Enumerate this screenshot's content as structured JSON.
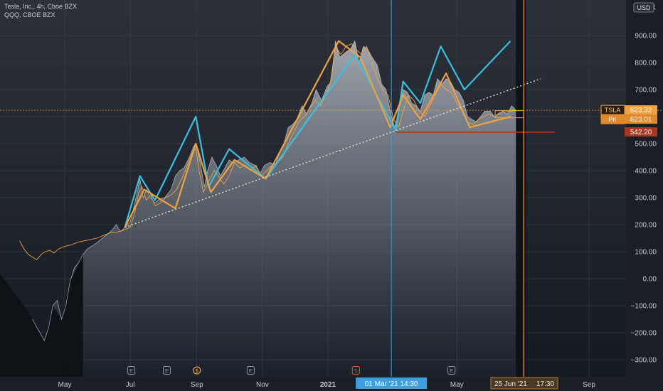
{
  "app": {
    "symbol_line": "Tesla, Inc., 4h, Cboe BZX",
    "compare_line": "QQQ, CBOE BZX",
    "currency": "USD"
  },
  "crosshair": {
    "x_label": "01 Mar '21  14:30",
    "replay_label": "25 Jun '21",
    "replay_time": "17:30"
  },
  "price_tags": [
    {
      "id": "tsla",
      "name": "TSLA",
      "value": "623.32",
      "color": "#f0a03c"
    },
    {
      "id": "pri",
      "name": "Pri",
      "value": "623.01",
      "color": "#e08a2c"
    },
    {
      "id": "level",
      "name": "",
      "value": "542.20",
      "color": "#a8381e"
    }
  ],
  "event_markers": [
    "E",
    "E",
    "$",
    "E",
    "S",
    "E"
  ],
  "colors": {
    "tsla_fill": "#b9bec8",
    "qqq_line": "#f0a03c",
    "wave_blue": "#39bfe0",
    "wave_orange": "#f0a03c",
    "trend_dotted": "#e9e4c9",
    "support_line": "#a8381e",
    "crosshair_blue": "#3d9ee0",
    "crosshair_orange": "#d88a3a"
  },
  "chart_data": {
    "type": "area",
    "title": "Tesla, Inc., 4h, Cboe BZX",
    "xlabel": "",
    "ylabel": "",
    "currency": "USD",
    "x_ticks": [
      "May",
      "Jul",
      "Sep",
      "Nov",
      "2021",
      "Mar",
      "May",
      "Jul",
      "Sep"
    ],
    "y_ticks": [
      "900.00",
      "800.00",
      "700.00",
      "600.00",
      "500.00",
      "400.00",
      "300.00",
      "200.00",
      "100.00",
      "0.00",
      "−100.00",
      "−200.00",
      "−300.00"
    ],
    "y_top_partial": "1",
    "ylim": [
      -340,
      1020
    ],
    "grid": true,
    "series": [
      {
        "name": "TSLA",
        "type": "area",
        "points": [
          [
            "2020-04-01",
            -150
          ],
          [
            "2020-04-05",
            -180
          ],
          [
            "2020-04-08",
            -200
          ],
          [
            "2020-04-12",
            -230
          ],
          [
            "2020-04-16",
            -180
          ],
          [
            "2020-04-20",
            -100
          ],
          [
            "2020-04-24",
            -80
          ],
          [
            "2020-04-28",
            -150
          ],
          [
            "2020-05-02",
            -100
          ],
          [
            "2020-05-06",
            -10
          ],
          [
            "2020-05-10",
            40
          ],
          [
            "2020-05-14",
            60
          ],
          [
            "2020-05-18",
            90
          ],
          [
            "2020-05-22",
            110
          ],
          [
            "2020-05-26",
            120
          ],
          [
            "2020-05-30",
            130
          ],
          [
            "2020-06-05",
            150
          ],
          [
            "2020-06-10",
            165
          ],
          [
            "2020-06-14",
            180
          ],
          [
            "2020-06-18",
            200
          ],
          [
            "2020-06-22",
            175
          ],
          [
            "2020-06-26",
            190
          ],
          [
            "2020-07-01",
            210
          ],
          [
            "2020-07-04",
            260
          ],
          [
            "2020-07-08",
            330
          ],
          [
            "2020-07-10",
            370
          ],
          [
            "2020-07-13",
            300
          ],
          [
            "2020-07-16",
            330
          ],
          [
            "2020-07-20",
            300
          ],
          [
            "2020-07-24",
            280
          ],
          [
            "2020-07-28",
            295
          ],
          [
            "2020-08-02",
            300
          ],
          [
            "2020-08-08",
            330
          ],
          [
            "2020-08-12",
            380
          ],
          [
            "2020-08-16",
            400
          ],
          [
            "2020-08-20",
            410
          ],
          [
            "2020-08-25",
            450
          ],
          [
            "2020-08-29",
            490
          ],
          [
            "2020-08-31",
            500
          ],
          [
            "2020-09-04",
            430
          ],
          [
            "2020-09-08",
            340
          ],
          [
            "2020-09-11",
            400
          ],
          [
            "2020-09-15",
            450
          ],
          [
            "2020-09-19",
            420
          ],
          [
            "2020-09-23",
            380
          ],
          [
            "2020-09-27",
            410
          ],
          [
            "2020-10-01",
            440
          ],
          [
            "2020-10-05",
            430
          ],
          [
            "2020-10-10",
            440
          ],
          [
            "2020-10-15",
            450
          ],
          [
            "2020-10-20",
            430
          ],
          [
            "2020-10-25",
            420
          ],
          [
            "2020-10-30",
            390
          ],
          [
            "2020-11-03",
            420
          ],
          [
            "2020-11-08",
            430
          ],
          [
            "2020-11-13",
            420
          ],
          [
            "2020-11-17",
            470
          ],
          [
            "2020-11-21",
            500
          ],
          [
            "2020-11-25",
            560
          ],
          [
            "2020-11-29",
            570
          ],
          [
            "2020-12-03",
            590
          ],
          [
            "2020-12-08",
            640
          ],
          [
            "2020-12-12",
            610
          ],
          [
            "2020-12-17",
            650
          ],
          [
            "2020-12-21",
            700
          ],
          [
            "2020-12-26",
            660
          ],
          [
            "2020-12-31",
            710
          ],
          [
            "2021-01-04",
            730
          ],
          [
            "2021-01-08",
            880
          ],
          [
            "2021-01-12",
            820
          ],
          [
            "2021-01-18",
            840
          ],
          [
            "2021-01-22",
            850
          ],
          [
            "2021-01-26",
            880
          ],
          [
            "2021-01-30",
            800
          ],
          [
            "2021-02-03",
            860
          ],
          [
            "2021-02-07",
            850
          ],
          [
            "2021-02-11",
            820
          ],
          [
            "2021-02-16",
            790
          ],
          [
            "2021-02-20",
            720
          ],
          [
            "2021-02-24",
            700
          ],
          [
            "2021-02-28",
            620
          ],
          [
            "2021-03-04",
            560
          ],
          [
            "2021-03-08",
            620
          ],
          [
            "2021-03-12",
            700
          ],
          [
            "2021-03-16",
            690
          ],
          [
            "2021-03-20",
            650
          ],
          [
            "2021-03-24",
            640
          ],
          [
            "2021-03-28",
            620
          ],
          [
            "2021-04-01",
            680
          ],
          [
            "2021-04-05",
            690
          ],
          [
            "2021-04-09",
            680
          ],
          [
            "2021-04-13",
            740
          ],
          [
            "2021-04-17",
            720
          ],
          [
            "2021-04-21",
            740
          ],
          [
            "2021-04-25",
            730
          ],
          [
            "2021-04-29",
            700
          ],
          [
            "2021-05-03",
            690
          ],
          [
            "2021-05-07",
            660
          ],
          [
            "2021-05-11",
            600
          ],
          [
            "2021-05-15",
            590
          ],
          [
            "2021-05-19",
            580
          ],
          [
            "2021-05-23",
            600
          ],
          [
            "2021-05-27",
            620
          ],
          [
            "2021-06-01",
            620
          ],
          [
            "2021-06-05",
            600
          ],
          [
            "2021-06-09",
            610
          ],
          [
            "2021-06-13",
            620
          ],
          [
            "2021-06-17",
            610
          ],
          [
            "2021-06-21",
            640
          ],
          [
            "2021-06-25",
            623.32
          ]
        ]
      },
      {
        "name": "QQQ",
        "type": "line",
        "points": [
          [
            "2020-03-20",
            140
          ],
          [
            "2020-03-24",
            110
          ],
          [
            "2020-03-28",
            90
          ],
          [
            "2020-04-01",
            80
          ],
          [
            "2020-04-05",
            70
          ],
          [
            "2020-04-09",
            90
          ],
          [
            "2020-04-13",
            100
          ],
          [
            "2020-04-17",
            105
          ],
          [
            "2020-04-21",
            95
          ],
          [
            "2020-04-25",
            110
          ],
          [
            "2020-05-01",
            120
          ],
          [
            "2020-05-07",
            125
          ],
          [
            "2020-05-13",
            135
          ],
          [
            "2020-05-19",
            140
          ],
          [
            "2020-05-25",
            145
          ],
          [
            "2020-05-31",
            150
          ],
          [
            "2020-06-06",
            160
          ],
          [
            "2020-06-12",
            170
          ],
          [
            "2020-06-18",
            172
          ],
          [
            "2020-06-24",
            178
          ],
          [
            "2020-07-01",
            190
          ],
          [
            "2020-07-05",
            240
          ],
          [
            "2020-07-09",
            320
          ],
          [
            "2020-07-12",
            340
          ],
          [
            "2020-07-16",
            290
          ],
          [
            "2020-07-20",
            310
          ],
          [
            "2020-07-24",
            270
          ],
          [
            "2020-07-29",
            280
          ],
          [
            "2020-08-03",
            300
          ],
          [
            "2020-08-08",
            310
          ],
          [
            "2020-08-13",
            330
          ],
          [
            "2020-08-18",
            370
          ],
          [
            "2020-08-23",
            420
          ],
          [
            "2020-08-28",
            470
          ],
          [
            "2020-08-31",
            480
          ],
          [
            "2020-09-03",
            400
          ],
          [
            "2020-09-07",
            320
          ],
          [
            "2020-09-12",
            360
          ],
          [
            "2020-09-17",
            400
          ],
          [
            "2020-09-21",
            380
          ],
          [
            "2020-09-26",
            350
          ],
          [
            "2020-10-01",
            380
          ],
          [
            "2020-10-06",
            430
          ],
          [
            "2020-10-11",
            410
          ],
          [
            "2020-10-16",
            420
          ],
          [
            "2020-10-21",
            400
          ],
          [
            "2020-10-26",
            420
          ],
          [
            "2020-10-31",
            380
          ],
          [
            "2020-11-05",
            400
          ],
          [
            "2020-11-10",
            420
          ],
          [
            "2020-11-15",
            430
          ],
          [
            "2020-11-20",
            450
          ],
          [
            "2020-11-25",
            500
          ],
          [
            "2020-11-30",
            540
          ],
          [
            "2020-12-05",
            580
          ],
          [
            "2020-12-10",
            600
          ],
          [
            "2020-12-15",
            630
          ],
          [
            "2020-12-20",
            660
          ],
          [
            "2020-12-25",
            640
          ],
          [
            "2020-12-30",
            680
          ],
          [
            "2021-01-03",
            720
          ],
          [
            "2021-01-08",
            860
          ],
          [
            "2021-01-13",
            830
          ],
          [
            "2021-01-18",
            860
          ],
          [
            "2021-01-23",
            870
          ],
          [
            "2021-01-27",
            850
          ],
          [
            "2021-02-01",
            830
          ],
          [
            "2021-02-06",
            860
          ],
          [
            "2021-02-11",
            800
          ],
          [
            "2021-02-16",
            740
          ],
          [
            "2021-02-21",
            700
          ],
          [
            "2021-02-26",
            680
          ],
          [
            "2021-03-03",
            590
          ],
          [
            "2021-03-08",
            560
          ],
          [
            "2021-03-12",
            620
          ],
          [
            "2021-03-17",
            680
          ],
          [
            "2021-03-22",
            660
          ],
          [
            "2021-03-27",
            620
          ],
          [
            "2021-04-01",
            600
          ],
          [
            "2021-04-06",
            640
          ],
          [
            "2021-04-11",
            680
          ],
          [
            "2021-04-16",
            720
          ],
          [
            "2021-04-21",
            700
          ],
          [
            "2021-04-26",
            690
          ],
          [
            "2021-05-01",
            650
          ],
          [
            "2021-05-06",
            620
          ],
          [
            "2021-05-11",
            580
          ],
          [
            "2021-05-16",
            570
          ],
          [
            "2021-05-21",
            590
          ],
          [
            "2021-05-26",
            600
          ],
          [
            "2021-05-31",
            610
          ],
          [
            "2021-06-05",
            600
          ],
          [
            "2021-06-10",
            615
          ],
          [
            "2021-06-15",
            618
          ],
          [
            "2021-06-20",
            620
          ],
          [
            "2021-06-25",
            623.01
          ]
        ]
      },
      {
        "name": "",
        "type": "wave",
        "color": "wave_blue",
        "points": [
          [
            "2020-06-26",
            190
          ],
          [
            "2020-07-10",
            380
          ],
          [
            "2020-07-24",
            290
          ],
          [
            "2020-08-31",
            600
          ],
          [
            "2020-09-12",
            340
          ],
          [
            "2020-10-01",
            480
          ],
          [
            "2020-11-04",
            370
          ],
          [
            "2021-01-26",
            830
          ],
          [
            "2021-03-05",
            550
          ],
          [
            "2021-03-12",
            730
          ],
          [
            "2021-03-28",
            650
          ],
          [
            "2021-04-16",
            860
          ],
          [
            "2021-05-08",
            700
          ],
          [
            "2021-06-20",
            880
          ]
        ]
      },
      {
        "name": "",
        "type": "wave",
        "color": "wave_orange",
        "points": [
          [
            "2020-06-26",
            190
          ],
          [
            "2020-07-14",
            330
          ],
          [
            "2020-08-12",
            260
          ],
          [
            "2020-08-31",
            500
          ],
          [
            "2020-09-14",
            320
          ],
          [
            "2020-10-06",
            440
          ],
          [
            "2020-11-04",
            370
          ],
          [
            "2021-01-11",
            880
          ],
          [
            "2021-01-31",
            820
          ],
          [
            "2021-02-28",
            560
          ],
          [
            "2021-03-12",
            680
          ],
          [
            "2021-03-28",
            590
          ],
          [
            "2021-04-21",
            760
          ],
          [
            "2021-05-13",
            560
          ],
          [
            "2021-06-20",
            600
          ]
        ]
      },
      {
        "name": "",
        "type": "trendline",
        "color": "trend_dotted",
        "points": [
          [
            "2020-06-26",
            190
          ],
          [
            "2021-07-18",
            740
          ]
        ]
      },
      {
        "name": "",
        "type": "hline",
        "color": "support_line",
        "points": [
          [
            "2021-03-05",
            542.2
          ],
          [
            "2021-07-31",
            542.2
          ]
        ]
      }
    ],
    "markers": [
      {
        "date": "2020-07-02",
        "label": "E"
      },
      {
        "date": "2020-08-04",
        "label": "E"
      },
      {
        "date": "2020-09-01",
        "label": "$"
      },
      {
        "date": "2020-10-21",
        "label": "E"
      },
      {
        "date": "2021-01-27",
        "label": "S"
      },
      {
        "date": "2021-04-26",
        "label": "E"
      }
    ]
  }
}
